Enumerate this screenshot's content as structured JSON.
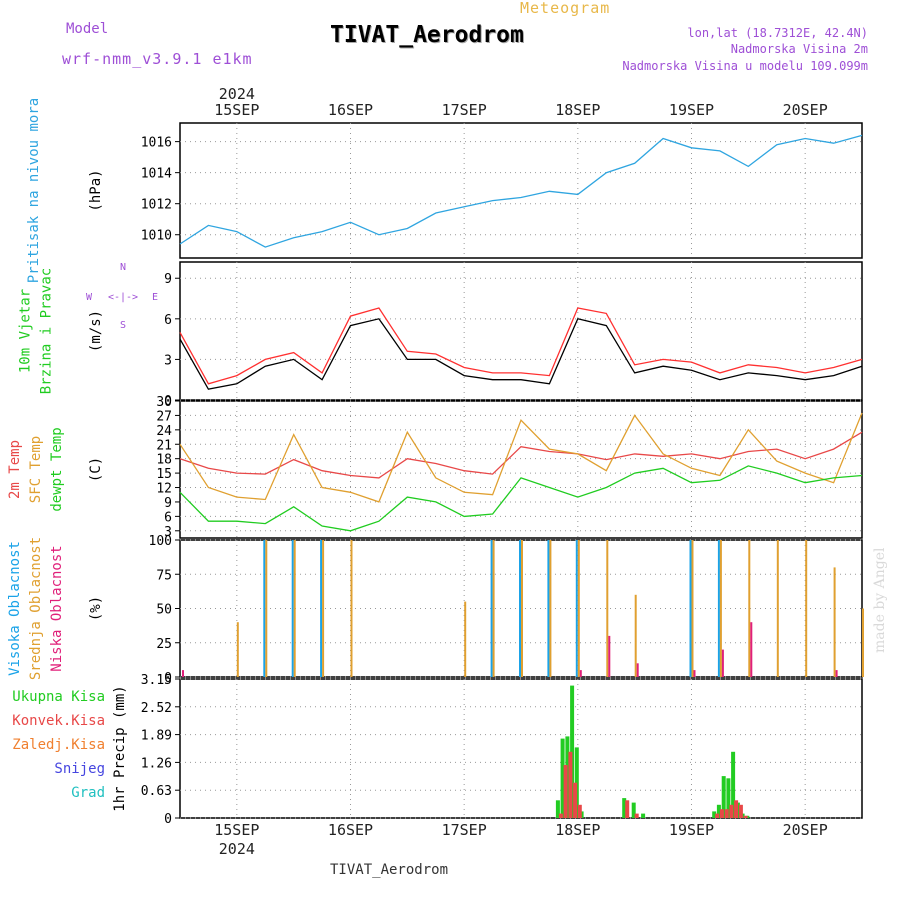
{
  "header": {
    "title": "TIVAT_Aerodrom",
    "subtitle": "Meteogram",
    "model_label": "Model",
    "model_value": "wrf-nmm_v3.9.1 e1km",
    "location_coords": "lon,lat (18.7312E, 42.4N)",
    "station_altitude": "Nadmorska Visina 2m",
    "model_altitude": "Nadmorska Visina u modelu 109.099m"
  },
  "footer": {
    "station": "TIVAT_Aerodrom"
  },
  "credit": "made by Angel",
  "colors": {
    "pressure": "#2fa5e0",
    "wind_speed": "#000000",
    "wind_gust": "#ff3030",
    "temp_2m": "#e84848",
    "temp_sfc": "#e0a030",
    "dewpoint": "#20cc20",
    "cloud_high": "#1aa3e8",
    "cloud_mid": "#e0a030",
    "cloud_low": "#e0207a",
    "precip_total": "#22cc22",
    "precip_conv": "#e84848",
    "precip_freezing": "#f08030",
    "precip_snow": "#4646e0",
    "precip_hail": "#20c0c0"
  },
  "chart_data": {
    "type": "line",
    "time_axis": {
      "year_label": "2024",
      "ticks": [
        "15SEP",
        "16SEP",
        "17SEP",
        "18SEP",
        "19SEP",
        "20SEP"
      ],
      "start": "2024-09-14T12:00",
      "end": "2024-09-20T12:00",
      "tick_times": [
        "2024-09-15T00:00",
        "2024-09-16T00:00",
        "2024-09-17T00:00",
        "2024-09-18T00:00",
        "2024-09-19T00:00",
        "2024-09-20T00:00"
      ]
    },
    "panels": [
      {
        "id": "pressure",
        "type": "line",
        "ylabel_lines": [
          "Pritisak na nivou mora"
        ],
        "unit": "(hPa)",
        "ylim": [
          1008.5,
          1017.2
        ],
        "yticks": [
          1010,
          1012,
          1014,
          1016
        ],
        "grid": true,
        "x": [
          "2024-09-14T12:00",
          "2024-09-14T18:00",
          "2024-09-15T00:00",
          "2024-09-15T06:00",
          "2024-09-15T12:00",
          "2024-09-15T18:00",
          "2024-09-16T00:00",
          "2024-09-16T06:00",
          "2024-09-16T12:00",
          "2024-09-16T18:00",
          "2024-09-17T00:00",
          "2024-09-17T06:00",
          "2024-09-17T12:00",
          "2024-09-17T18:00",
          "2024-09-18T00:00",
          "2024-09-18T06:00",
          "2024-09-18T12:00",
          "2024-09-18T18:00",
          "2024-09-19T00:00",
          "2024-09-19T06:00",
          "2024-09-19T12:00",
          "2024-09-19T18:00",
          "2024-09-20T00:00",
          "2024-09-20T06:00",
          "2024-09-20T12:00"
        ],
        "series": [
          {
            "values": [
              1009.4,
              1010.6,
              1010.2,
              1009.2,
              1009.8,
              1010.2,
              1010.8,
              1010.0,
              1010.4,
              1011.4,
              1011.8,
              1012.2,
              1012.4,
              1012.8,
              1012.6,
              1014.0,
              1014.6,
              1016.2,
              1015.6,
              1015.4,
              1014.4,
              1015.8,
              1016.2,
              1015.9,
              1016.4
            ]
          }
        ]
      },
      {
        "id": "wind",
        "type": "line",
        "ylabel_lines": [
          "10m Vjetar",
          "Brzina i Pravac"
        ],
        "unit": "(m/s)",
        "ylim": [
          0,
          10.2
        ],
        "yticks": [
          0,
          3,
          6,
          9
        ],
        "grid": true,
        "direction_key": {
          "n": "N",
          "e": "E",
          "w": "W",
          "s": "S",
          "arrows": "<-|->"
        },
        "x": [
          "2024-09-14T12:00",
          "2024-09-14T18:00",
          "2024-09-15T00:00",
          "2024-09-15T06:00",
          "2024-09-15T12:00",
          "2024-09-15T18:00",
          "2024-09-16T00:00",
          "2024-09-16T06:00",
          "2024-09-16T12:00",
          "2024-09-16T18:00",
          "2024-09-17T00:00",
          "2024-09-17T06:00",
          "2024-09-17T12:00",
          "2024-09-17T18:00",
          "2024-09-18T00:00",
          "2024-09-18T06:00",
          "2024-09-18T12:00",
          "2024-09-18T18:00",
          "2024-09-19T00:00",
          "2024-09-19T06:00",
          "2024-09-19T12:00",
          "2024-09-19T18:00",
          "2024-09-20T00:00",
          "2024-09-20T06:00",
          "2024-09-20T12:00"
        ],
        "series": [
          {
            "values": [
              4.5,
              0.8,
              1.2,
              2.5,
              3.0,
              1.5,
              5.5,
              6.0,
              3.0,
              3.0,
              1.8,
              1.5,
              1.5,
              1.2,
              6.0,
              5.5,
              2.0,
              2.5,
              2.2,
              1.5,
              2.0,
              1.8,
              1.5,
              1.8,
              2.5
            ]
          },
          {
            "values": [
              5.0,
              1.2,
              1.8,
              3.0,
              3.5,
              2.0,
              6.2,
              6.8,
              3.6,
              3.4,
              2.4,
              2.0,
              2.0,
              1.8,
              6.8,
              6.4,
              2.6,
              3.0,
              2.8,
              2.0,
              2.6,
              2.4,
              2.0,
              2.4,
              3.0
            ]
          }
        ]
      },
      {
        "id": "temperature",
        "type": "line",
        "ylabel_lines": [
          "2m Temp",
          "SFC Temp",
          "dewpt Temp"
        ],
        "unit": "(C)",
        "ylim": [
          1.5,
          30
        ],
        "yticks": [
          3,
          6,
          9,
          12,
          15,
          18,
          21,
          24,
          27,
          30
        ],
        "grid": true,
        "x": [
          "2024-09-14T12:00",
          "2024-09-14T18:00",
          "2024-09-15T00:00",
          "2024-09-15T06:00",
          "2024-09-15T12:00",
          "2024-09-15T18:00",
          "2024-09-16T00:00",
          "2024-09-16T06:00",
          "2024-09-16T12:00",
          "2024-09-16T18:00",
          "2024-09-17T00:00",
          "2024-09-17T06:00",
          "2024-09-17T12:00",
          "2024-09-17T18:00",
          "2024-09-18T00:00",
          "2024-09-18T06:00",
          "2024-09-18T12:00",
          "2024-09-18T18:00",
          "2024-09-19T00:00",
          "2024-09-19T06:00",
          "2024-09-19T12:00",
          "2024-09-19T18:00",
          "2024-09-20T00:00",
          "2024-09-20T06:00",
          "2024-09-20T12:00"
        ],
        "series": [
          {
            "values": [
              18.0,
              16.0,
              15.0,
              14.8,
              17.8,
              15.5,
              14.5,
              14.0,
              18.0,
              17.0,
              15.5,
              14.8,
              20.5,
              19.5,
              19.0,
              17.8,
              19.0,
              18.5,
              19.0,
              18.0,
              19.5,
              20.0,
              18.0,
              20.0,
              23.5
            ]
          },
          {
            "values": [
              21.0,
              12.0,
              10.0,
              9.5,
              23.0,
              12.0,
              11.0,
              9.0,
              23.5,
              14.0,
              11.0,
              10.5,
              26.0,
              20.0,
              19.0,
              15.5,
              27.0,
              19.0,
              16.0,
              14.5,
              24.0,
              17.5,
              15.0,
              13.0,
              27.5
            ]
          },
          {
            "values": [
              11.0,
              5.0,
              5.0,
              4.5,
              8.0,
              4.0,
              3.0,
              5.0,
              10.0,
              9.0,
              6.0,
              6.5,
              14.0,
              12.0,
              10.0,
              12.0,
              15.0,
              16.0,
              13.0,
              13.5,
              16.5,
              15.0,
              13.0,
              14.0,
              14.5
            ]
          }
        ]
      },
      {
        "id": "clouds",
        "type": "bar",
        "ylabel_lines": [
          "Visoka Oblacnost",
          "Srednja Oblacnost",
          "Niska Oblacnost"
        ],
        "unit": "(%)",
        "ylim": [
          0,
          100
        ],
        "yticks": [
          0,
          25,
          50,
          75,
          100
        ],
        "grid": true,
        "x": [
          "2024-09-14T12:00",
          "2024-09-14T18:00",
          "2024-09-15T00:00",
          "2024-09-15T06:00",
          "2024-09-15T12:00",
          "2024-09-15T18:00",
          "2024-09-16T00:00",
          "2024-09-16T06:00",
          "2024-09-16T12:00",
          "2024-09-16T18:00",
          "2024-09-17T00:00",
          "2024-09-17T06:00",
          "2024-09-17T12:00",
          "2024-09-17T18:00",
          "2024-09-18T00:00",
          "2024-09-18T06:00",
          "2024-09-18T12:00",
          "2024-09-18T18:00",
          "2024-09-19T00:00",
          "2024-09-19T06:00",
          "2024-09-19T12:00",
          "2024-09-19T18:00",
          "2024-09-20T00:00",
          "2024-09-20T06:00",
          "2024-09-20T12:00"
        ],
        "series": [
          {
            "values": [
              0,
              0,
              0,
              100,
              100,
              100,
              0,
              0,
              0,
              0,
              0,
              100,
              100,
              100,
              100,
              0,
              0,
              0,
              100,
              100,
              0,
              0,
              0,
              0,
              0
            ]
          },
          {
            "values": [
              0,
              0,
              40,
              100,
              100,
              100,
              100,
              0,
              0,
              0,
              55,
              100,
              100,
              100,
              100,
              100,
              60,
              0,
              100,
              100,
              100,
              100,
              100,
              80,
              50
            ]
          },
          {
            "values": [
              5,
              0,
              0,
              0,
              0,
              0,
              0,
              0,
              0,
              0,
              0,
              0,
              0,
              0,
              5,
              30,
              10,
              0,
              5,
              20,
              40,
              0,
              0,
              5,
              0
            ]
          }
        ]
      },
      {
        "id": "precipitation",
        "type": "bar",
        "ylabel_lines": [
          "Ukupna Kisa",
          "Konvek.Kisa",
          "Zaledj.Kisa",
          "Snijeg",
          "Grad"
        ],
        "unit": "1hr Precip (mm)",
        "ylim": [
          0,
          3.15
        ],
        "yticks": [
          0,
          0.63,
          1.26,
          1.89,
          2.52,
          3.15
        ],
        "grid": true,
        "x": [
          "2024-09-17T20:00",
          "2024-09-17T21:00",
          "2024-09-17T22:00",
          "2024-09-17T23:00",
          "2024-09-18T00:00",
          "2024-09-18T01:00",
          "2024-09-18T10:00",
          "2024-09-18T12:00",
          "2024-09-18T14:00",
          "2024-09-19T05:00",
          "2024-09-19T06:00",
          "2024-09-19T07:00",
          "2024-09-19T08:00",
          "2024-09-19T09:00",
          "2024-09-19T10:00",
          "2024-09-19T11:00",
          "2024-09-19T12:00"
        ],
        "series": [
          {
            "values": [
              0.4,
              1.8,
              1.85,
              3.0,
              1.6,
              0.15,
              0.45,
              0.35,
              0.1,
              0.15,
              0.3,
              0.95,
              0.9,
              1.5,
              0.35,
              0.1,
              0.05
            ]
          },
          {
            "values": [
              0.1,
              1.2,
              1.5,
              0.8,
              0.3,
              0.0,
              0.4,
              0.1,
              0.0,
              0.1,
              0.2,
              0.2,
              0.3,
              0.4,
              0.3,
              0.05,
              0.0
            ]
          }
        ]
      }
    ]
  }
}
